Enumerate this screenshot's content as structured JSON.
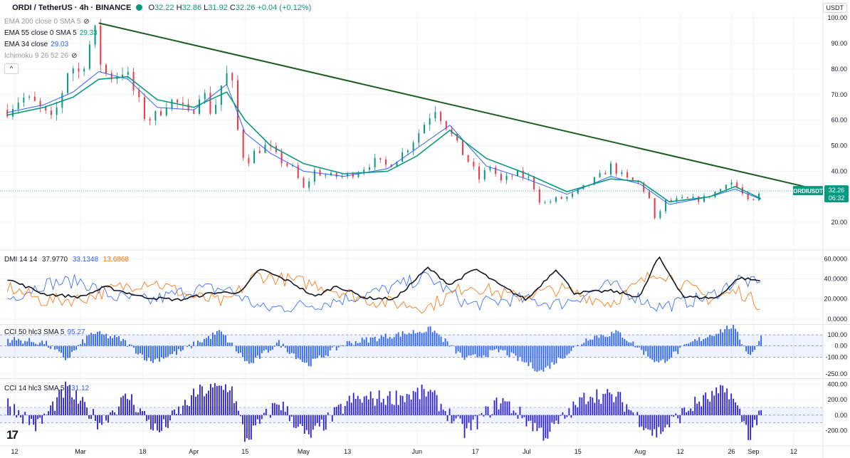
{
  "header": {
    "symbol": "ORDI / TetherUS · 4h · BINANCE",
    "o_key": "O",
    "o": "32.22",
    "h_key": "H",
    "h": "32.86",
    "l_key": "L",
    "l": "31.92",
    "c_key": "C",
    "c": "32.26",
    "change": "+0.04 (+0.12%)"
  },
  "currency": "USDT",
  "indicators": {
    "ema200": {
      "label": "EMA 200 close 0 SMA 5"
    },
    "ema55": {
      "label": "EMA 55 close 0 SMA 5",
      "value": "29.33",
      "color": "#089981"
    },
    "ema34": {
      "label": "EMA 34 close",
      "value": "29.03",
      "color": "#2962ff"
    },
    "ichimoku": {
      "label": "Ichimoku 9 26 52 26"
    }
  },
  "collapse_label": "^",
  "price_tag": {
    "symbol": "ORDIUSDT",
    "price": "32.26",
    "countdown": "06:32",
    "color": "#089981"
  },
  "panes": {
    "dmi": {
      "label": "DMI 14 14",
      "adx": "37.9770",
      "plus_di": "33.1348",
      "minus_di": "13.6868",
      "adx_color": "#131722",
      "plus_color": "#2962ff",
      "minus_color": "#ff6d00"
    },
    "cci50": {
      "label": "CCI 50 hlc3 SMA 5",
      "value": "95.27",
      "color": "#2962ff"
    },
    "cci14": {
      "label": "CCI 14 hlc3 SMA 5",
      "value": "131.12",
      "color": "#2962ff"
    }
  },
  "chart_data": {
    "type": "candlestick",
    "timeframe": "4h",
    "x_labels": [
      {
        "text": "12",
        "date": "2024-02-12"
      },
      {
        "text": "Mar",
        "date": "2024-03-01"
      },
      {
        "text": "18",
        "date": "2024-03-18"
      },
      {
        "text": "Apr",
        "date": "2024-04-01"
      },
      {
        "text": "15",
        "date": "2024-04-15"
      },
      {
        "text": "May",
        "date": "2024-05-01"
      },
      {
        "text": "13",
        "date": "2024-05-13"
      },
      {
        "text": "Jun",
        "date": "2024-06-01"
      },
      {
        "text": "17",
        "date": "2024-06-17"
      },
      {
        "text": "Jul",
        "date": "2024-07-01"
      },
      {
        "text": "15",
        "date": "2024-07-15"
      },
      {
        "text": "Aug",
        "date": "2024-08-01"
      },
      {
        "text": "12",
        "date": "2024-08-12"
      },
      {
        "text": "26",
        "date": "2024-08-26"
      },
      {
        "text": "Sep",
        "date": "2024-09-01"
      },
      {
        "text": "12",
        "date": "2024-09-12"
      }
    ],
    "price_axis": {
      "ticks": [
        20,
        30,
        40,
        50,
        60,
        70,
        80,
        90,
        100
      ],
      "labels": [
        "20.00",
        "30.00",
        "40.00",
        "50.00",
        "60.00",
        "70.00",
        "80.00",
        "90.00",
        "100.00"
      ],
      "range": [
        10,
        102
      ]
    },
    "price_series": [
      {
        "date": "2024-02-10",
        "close": 64
      },
      {
        "date": "2024-02-14",
        "close": 69
      },
      {
        "date": "2024-02-18",
        "close": 66
      },
      {
        "date": "2024-02-22",
        "close": 60
      },
      {
        "date": "2024-02-24",
        "close": 66
      },
      {
        "date": "2024-02-27",
        "close": 82
      },
      {
        "date": "2024-03-01",
        "close": 78
      },
      {
        "date": "2024-03-03",
        "close": 88
      },
      {
        "date": "2024-03-05",
        "close": 94
      },
      {
        "date": "2024-03-07",
        "close": 79
      },
      {
        "date": "2024-03-10",
        "close": 77
      },
      {
        "date": "2024-03-13",
        "close": 80
      },
      {
        "date": "2024-03-16",
        "close": 70
      },
      {
        "date": "2024-03-19",
        "close": 60
      },
      {
        "date": "2024-03-22",
        "close": 62
      },
      {
        "date": "2024-03-25",
        "close": 68
      },
      {
        "date": "2024-03-28",
        "close": 66
      },
      {
        "date": "2024-03-31",
        "close": 61
      },
      {
        "date": "2024-04-03",
        "close": 73
      },
      {
        "date": "2024-04-06",
        "close": 62
      },
      {
        "date": "2024-04-09",
        "close": 76
      },
      {
        "date": "2024-04-11",
        "close": 79
      },
      {
        "date": "2024-04-13",
        "close": 56
      },
      {
        "date": "2024-04-15",
        "close": 43
      },
      {
        "date": "2024-04-18",
        "close": 48
      },
      {
        "date": "2024-04-21",
        "close": 50
      },
      {
        "date": "2024-04-24",
        "close": 45
      },
      {
        "date": "2024-04-28",
        "close": 41
      },
      {
        "date": "2024-05-01",
        "close": 33
      },
      {
        "date": "2024-05-04",
        "close": 40
      },
      {
        "date": "2024-05-08",
        "close": 38
      },
      {
        "date": "2024-05-12",
        "close": 38
      },
      {
        "date": "2024-05-16",
        "close": 40
      },
      {
        "date": "2024-05-20",
        "close": 44
      },
      {
        "date": "2024-05-24",
        "close": 42
      },
      {
        "date": "2024-05-28",
        "close": 47
      },
      {
        "date": "2024-06-01",
        "close": 54
      },
      {
        "date": "2024-06-04",
        "close": 61
      },
      {
        "date": "2024-06-06",
        "close": 65
      },
      {
        "date": "2024-06-09",
        "close": 58
      },
      {
        "date": "2024-06-12",
        "close": 50
      },
      {
        "date": "2024-06-15",
        "close": 44
      },
      {
        "date": "2024-06-18",
        "close": 37
      },
      {
        "date": "2024-06-21",
        "close": 42
      },
      {
        "date": "2024-06-24",
        "close": 36
      },
      {
        "date": "2024-06-28",
        "close": 39
      },
      {
        "date": "2024-07-02",
        "close": 37
      },
      {
        "date": "2024-07-05",
        "close": 27
      },
      {
        "date": "2024-07-09",
        "close": 29
      },
      {
        "date": "2024-07-13",
        "close": 30
      },
      {
        "date": "2024-07-17",
        "close": 34
      },
      {
        "date": "2024-07-21",
        "close": 38
      },
      {
        "date": "2024-07-24",
        "close": 42
      },
      {
        "date": "2024-07-28",
        "close": 37
      },
      {
        "date": "2024-08-01",
        "close": 35
      },
      {
        "date": "2024-08-04",
        "close": 28
      },
      {
        "date": "2024-08-05",
        "close": 21
      },
      {
        "date": "2024-08-08",
        "close": 28
      },
      {
        "date": "2024-08-13",
        "close": 29
      },
      {
        "date": "2024-08-18",
        "close": 29
      },
      {
        "date": "2024-08-23",
        "close": 33
      },
      {
        "date": "2024-08-25",
        "close": 37
      },
      {
        "date": "2024-08-28",
        "close": 33
      },
      {
        "date": "2024-08-31",
        "close": 27
      },
      {
        "date": "2024-09-02",
        "close": 29
      },
      {
        "date": "2024-09-03",
        "close": 32.26
      }
    ],
    "ema55_series": [
      {
        "date": "2024-02-10",
        "value": 62
      },
      {
        "date": "2024-02-20",
        "value": 65
      },
      {
        "date": "2024-02-28",
        "value": 69
      },
      {
        "date": "2024-03-06",
        "value": 76
      },
      {
        "date": "2024-03-14",
        "value": 77
      },
      {
        "date": "2024-03-22",
        "value": 68
      },
      {
        "date": "2024-04-01",
        "value": 65
      },
      {
        "date": "2024-04-10",
        "value": 71
      },
      {
        "date": "2024-04-15",
        "value": 60
      },
      {
        "date": "2024-04-22",
        "value": 50
      },
      {
        "date": "2024-05-01",
        "value": 43
      },
      {
        "date": "2024-05-12",
        "value": 39
      },
      {
        "date": "2024-05-24",
        "value": 40
      },
      {
        "date": "2024-06-01",
        "value": 46
      },
      {
        "date": "2024-06-10",
        "value": 56
      },
      {
        "date": "2024-06-20",
        "value": 45
      },
      {
        "date": "2024-07-01",
        "value": 39
      },
      {
        "date": "2024-07-12",
        "value": 32
      },
      {
        "date": "2024-07-24",
        "value": 37
      },
      {
        "date": "2024-08-01",
        "value": 36
      },
      {
        "date": "2024-08-09",
        "value": 28
      },
      {
        "date": "2024-08-20",
        "value": 30
      },
      {
        "date": "2024-08-27",
        "value": 34
      },
      {
        "date": "2024-09-03",
        "value": 29.33
      }
    ],
    "ema34_series": [
      {
        "date": "2024-02-10",
        "value": 63
      },
      {
        "date": "2024-02-20",
        "value": 66
      },
      {
        "date": "2024-02-28",
        "value": 71
      },
      {
        "date": "2024-03-06",
        "value": 79
      },
      {
        "date": "2024-03-14",
        "value": 76
      },
      {
        "date": "2024-03-22",
        "value": 65
      },
      {
        "date": "2024-04-01",
        "value": 64
      },
      {
        "date": "2024-04-10",
        "value": 74
      },
      {
        "date": "2024-04-15",
        "value": 55
      },
      {
        "date": "2024-04-22",
        "value": 47
      },
      {
        "date": "2024-05-01",
        "value": 40
      },
      {
        "date": "2024-05-12",
        "value": 38
      },
      {
        "date": "2024-05-24",
        "value": 41
      },
      {
        "date": "2024-06-01",
        "value": 49
      },
      {
        "date": "2024-06-10",
        "value": 58
      },
      {
        "date": "2024-06-20",
        "value": 42
      },
      {
        "date": "2024-07-01",
        "value": 37
      },
      {
        "date": "2024-07-12",
        "value": 31
      },
      {
        "date": "2024-07-24",
        "value": 38
      },
      {
        "date": "2024-08-01",
        "value": 35
      },
      {
        "date": "2024-08-09",
        "value": 27
      },
      {
        "date": "2024-08-20",
        "value": 30
      },
      {
        "date": "2024-08-27",
        "value": 33
      },
      {
        "date": "2024-09-03",
        "value": 29.03
      }
    ],
    "trendline": {
      "start": {
        "date": "2024-03-06",
        "price": 98
      },
      "end": {
        "date": "2024-09-15",
        "price": 34
      },
      "color": "#1b5e20"
    },
    "dmi_axis": {
      "ticks": [
        0,
        20,
        40,
        60
      ],
      "labels": [
        "0.0000",
        "20.0000",
        "40.0000",
        "60.0000"
      ],
      "range": [
        -5,
        68
      ]
    },
    "dmi_adx": [
      {
        "date": "2024-02-10",
        "value": 40
      },
      {
        "date": "2024-02-20",
        "value": 25
      },
      {
        "date": "2024-03-01",
        "value": 22
      },
      {
        "date": "2024-03-08",
        "value": 32
      },
      {
        "date": "2024-03-18",
        "value": 22
      },
      {
        "date": "2024-03-28",
        "value": 19
      },
      {
        "date": "2024-04-06",
        "value": 26
      },
      {
        "date": "2024-04-14",
        "value": 27
      },
      {
        "date": "2024-04-19",
        "value": 50
      },
      {
        "date": "2024-04-28",
        "value": 36
      },
      {
        "date": "2024-05-04",
        "value": 22
      },
      {
        "date": "2024-05-10",
        "value": 33
      },
      {
        "date": "2024-05-18",
        "value": 21
      },
      {
        "date": "2024-05-26",
        "value": 20
      },
      {
        "date": "2024-06-04",
        "value": 51
      },
      {
        "date": "2024-06-10",
        "value": 34
      },
      {
        "date": "2024-06-17",
        "value": 50
      },
      {
        "date": "2024-06-24",
        "value": 33
      },
      {
        "date": "2024-07-01",
        "value": 19
      },
      {
        "date": "2024-07-09",
        "value": 50
      },
      {
        "date": "2024-07-14",
        "value": 26
      },
      {
        "date": "2024-07-24",
        "value": 28
      },
      {
        "date": "2024-08-01",
        "value": 22
      },
      {
        "date": "2024-08-06",
        "value": 62
      },
      {
        "date": "2024-08-13",
        "value": 22
      },
      {
        "date": "2024-08-22",
        "value": 21
      },
      {
        "date": "2024-08-28",
        "value": 41
      },
      {
        "date": "2024-09-03",
        "value": 37.977
      }
    ],
    "dmi_plus": [
      {
        "date": "2024-02-10",
        "value": 20
      },
      {
        "date": "2024-02-20",
        "value": 35
      },
      {
        "date": "2024-03-01",
        "value": 38
      },
      {
        "date": "2024-03-10",
        "value": 22
      },
      {
        "date": "2024-03-20",
        "value": 18
      },
      {
        "date": "2024-04-01",
        "value": 30
      },
      {
        "date": "2024-04-10",
        "value": 30
      },
      {
        "date": "2024-04-20",
        "value": 10
      },
      {
        "date": "2024-05-05",
        "value": 15
      },
      {
        "date": "2024-05-20",
        "value": 26
      },
      {
        "date": "2024-06-04",
        "value": 42
      },
      {
        "date": "2024-06-15",
        "value": 14
      },
      {
        "date": "2024-06-28",
        "value": 20
      },
      {
        "date": "2024-07-10",
        "value": 15
      },
      {
        "date": "2024-07-24",
        "value": 34
      },
      {
        "date": "2024-08-06",
        "value": 12
      },
      {
        "date": "2024-08-20",
        "value": 22
      },
      {
        "date": "2024-08-28",
        "value": 40
      },
      {
        "date": "2024-09-03",
        "value": 33.1348
      }
    ],
    "dmi_minus": [
      {
        "date": "2024-02-10",
        "value": 32
      },
      {
        "date": "2024-02-20",
        "value": 18
      },
      {
        "date": "2024-03-01",
        "value": 20
      },
      {
        "date": "2024-03-10",
        "value": 30
      },
      {
        "date": "2024-03-20",
        "value": 38
      },
      {
        "date": "2024-04-01",
        "value": 22
      },
      {
        "date": "2024-04-10",
        "value": 16
      },
      {
        "date": "2024-04-18",
        "value": 44
      },
      {
        "date": "2024-05-05",
        "value": 34
      },
      {
        "date": "2024-05-20",
        "value": 18
      },
      {
        "date": "2024-06-04",
        "value": 12
      },
      {
        "date": "2024-06-15",
        "value": 34
      },
      {
        "date": "2024-06-28",
        "value": 22
      },
      {
        "date": "2024-07-10",
        "value": 30
      },
      {
        "date": "2024-07-24",
        "value": 16
      },
      {
        "date": "2024-08-06",
        "value": 48
      },
      {
        "date": "2024-08-20",
        "value": 20
      },
      {
        "date": "2024-08-28",
        "value": 28
      },
      {
        "date": "2024-09-03",
        "value": 13.6868
      }
    ],
    "cci50_axis": {
      "ticks": [
        100,
        0,
        -100,
        -250
      ],
      "labels": [
        "100.00",
        "0.00",
        "-100.00",
        "-250.00"
      ],
      "range": [
        -290,
        190
      ]
    },
    "cci50": [
      {
        "date": "2024-02-10",
        "value": 60
      },
      {
        "date": "2024-02-20",
        "value": 30
      },
      {
        "date": "2024-02-26",
        "value": -120
      },
      {
        "date": "2024-03-04",
        "value": 120
      },
      {
        "date": "2024-03-12",
        "value": 60
      },
      {
        "date": "2024-03-20",
        "value": -140
      },
      {
        "date": "2024-03-28",
        "value": -50
      },
      {
        "date": "2024-04-08",
        "value": 130
      },
      {
        "date": "2024-04-16",
        "value": -170
      },
      {
        "date": "2024-04-24",
        "value": 30
      },
      {
        "date": "2024-05-02",
        "value": -170
      },
      {
        "date": "2024-05-12",
        "value": 20
      },
      {
        "date": "2024-05-24",
        "value": 90
      },
      {
        "date": "2024-06-05",
        "value": 150
      },
      {
        "date": "2024-06-14",
        "value": -120
      },
      {
        "date": "2024-06-24",
        "value": -40
      },
      {
        "date": "2024-07-05",
        "value": -230
      },
      {
        "date": "2024-07-18",
        "value": 80
      },
      {
        "date": "2024-07-26",
        "value": 120
      },
      {
        "date": "2024-08-06",
        "value": -160
      },
      {
        "date": "2024-08-15",
        "value": 30
      },
      {
        "date": "2024-08-26",
        "value": 180
      },
      {
        "date": "2024-08-31",
        "value": -90
      },
      {
        "date": "2024-09-03",
        "value": 95.27
      }
    ],
    "cci14_axis": {
      "ticks": [
        400,
        200,
        0,
        -200
      ],
      "labels": [
        "400.00",
        "200.00",
        "0.00",
        "-200.00"
      ],
      "range": [
        -390,
        470
      ]
    },
    "cci14": [
      {
        "date": "2024-02-10",
        "value": 150
      },
      {
        "date": "2024-02-18",
        "value": -150
      },
      {
        "date": "2024-02-26",
        "value": 350
      },
      {
        "date": "2024-03-06",
        "value": -100
      },
      {
        "date": "2024-03-14",
        "value": 250
      },
      {
        "date": "2024-03-22",
        "value": -230
      },
      {
        "date": "2024-04-02",
        "value": 300
      },
      {
        "date": "2024-04-11",
        "value": 380
      },
      {
        "date": "2024-04-15",
        "value": -330
      },
      {
        "date": "2024-04-24",
        "value": 180
      },
      {
        "date": "2024-05-02",
        "value": -300
      },
      {
        "date": "2024-05-14",
        "value": 200
      },
      {
        "date": "2024-05-25",
        "value": 230
      },
      {
        "date": "2024-06-04",
        "value": 300
      },
      {
        "date": "2024-06-14",
        "value": -220
      },
      {
        "date": "2024-06-24",
        "value": 200
      },
      {
        "date": "2024-07-06",
        "value": -260
      },
      {
        "date": "2024-07-18",
        "value": 280
      },
      {
        "date": "2024-07-26",
        "value": 220
      },
      {
        "date": "2024-08-05",
        "value": -250
      },
      {
        "date": "2024-08-16",
        "value": 150
      },
      {
        "date": "2024-08-25",
        "value": 330
      },
      {
        "date": "2024-08-31",
        "value": -280
      },
      {
        "date": "2024-09-03",
        "value": 131.12
      }
    ]
  }
}
